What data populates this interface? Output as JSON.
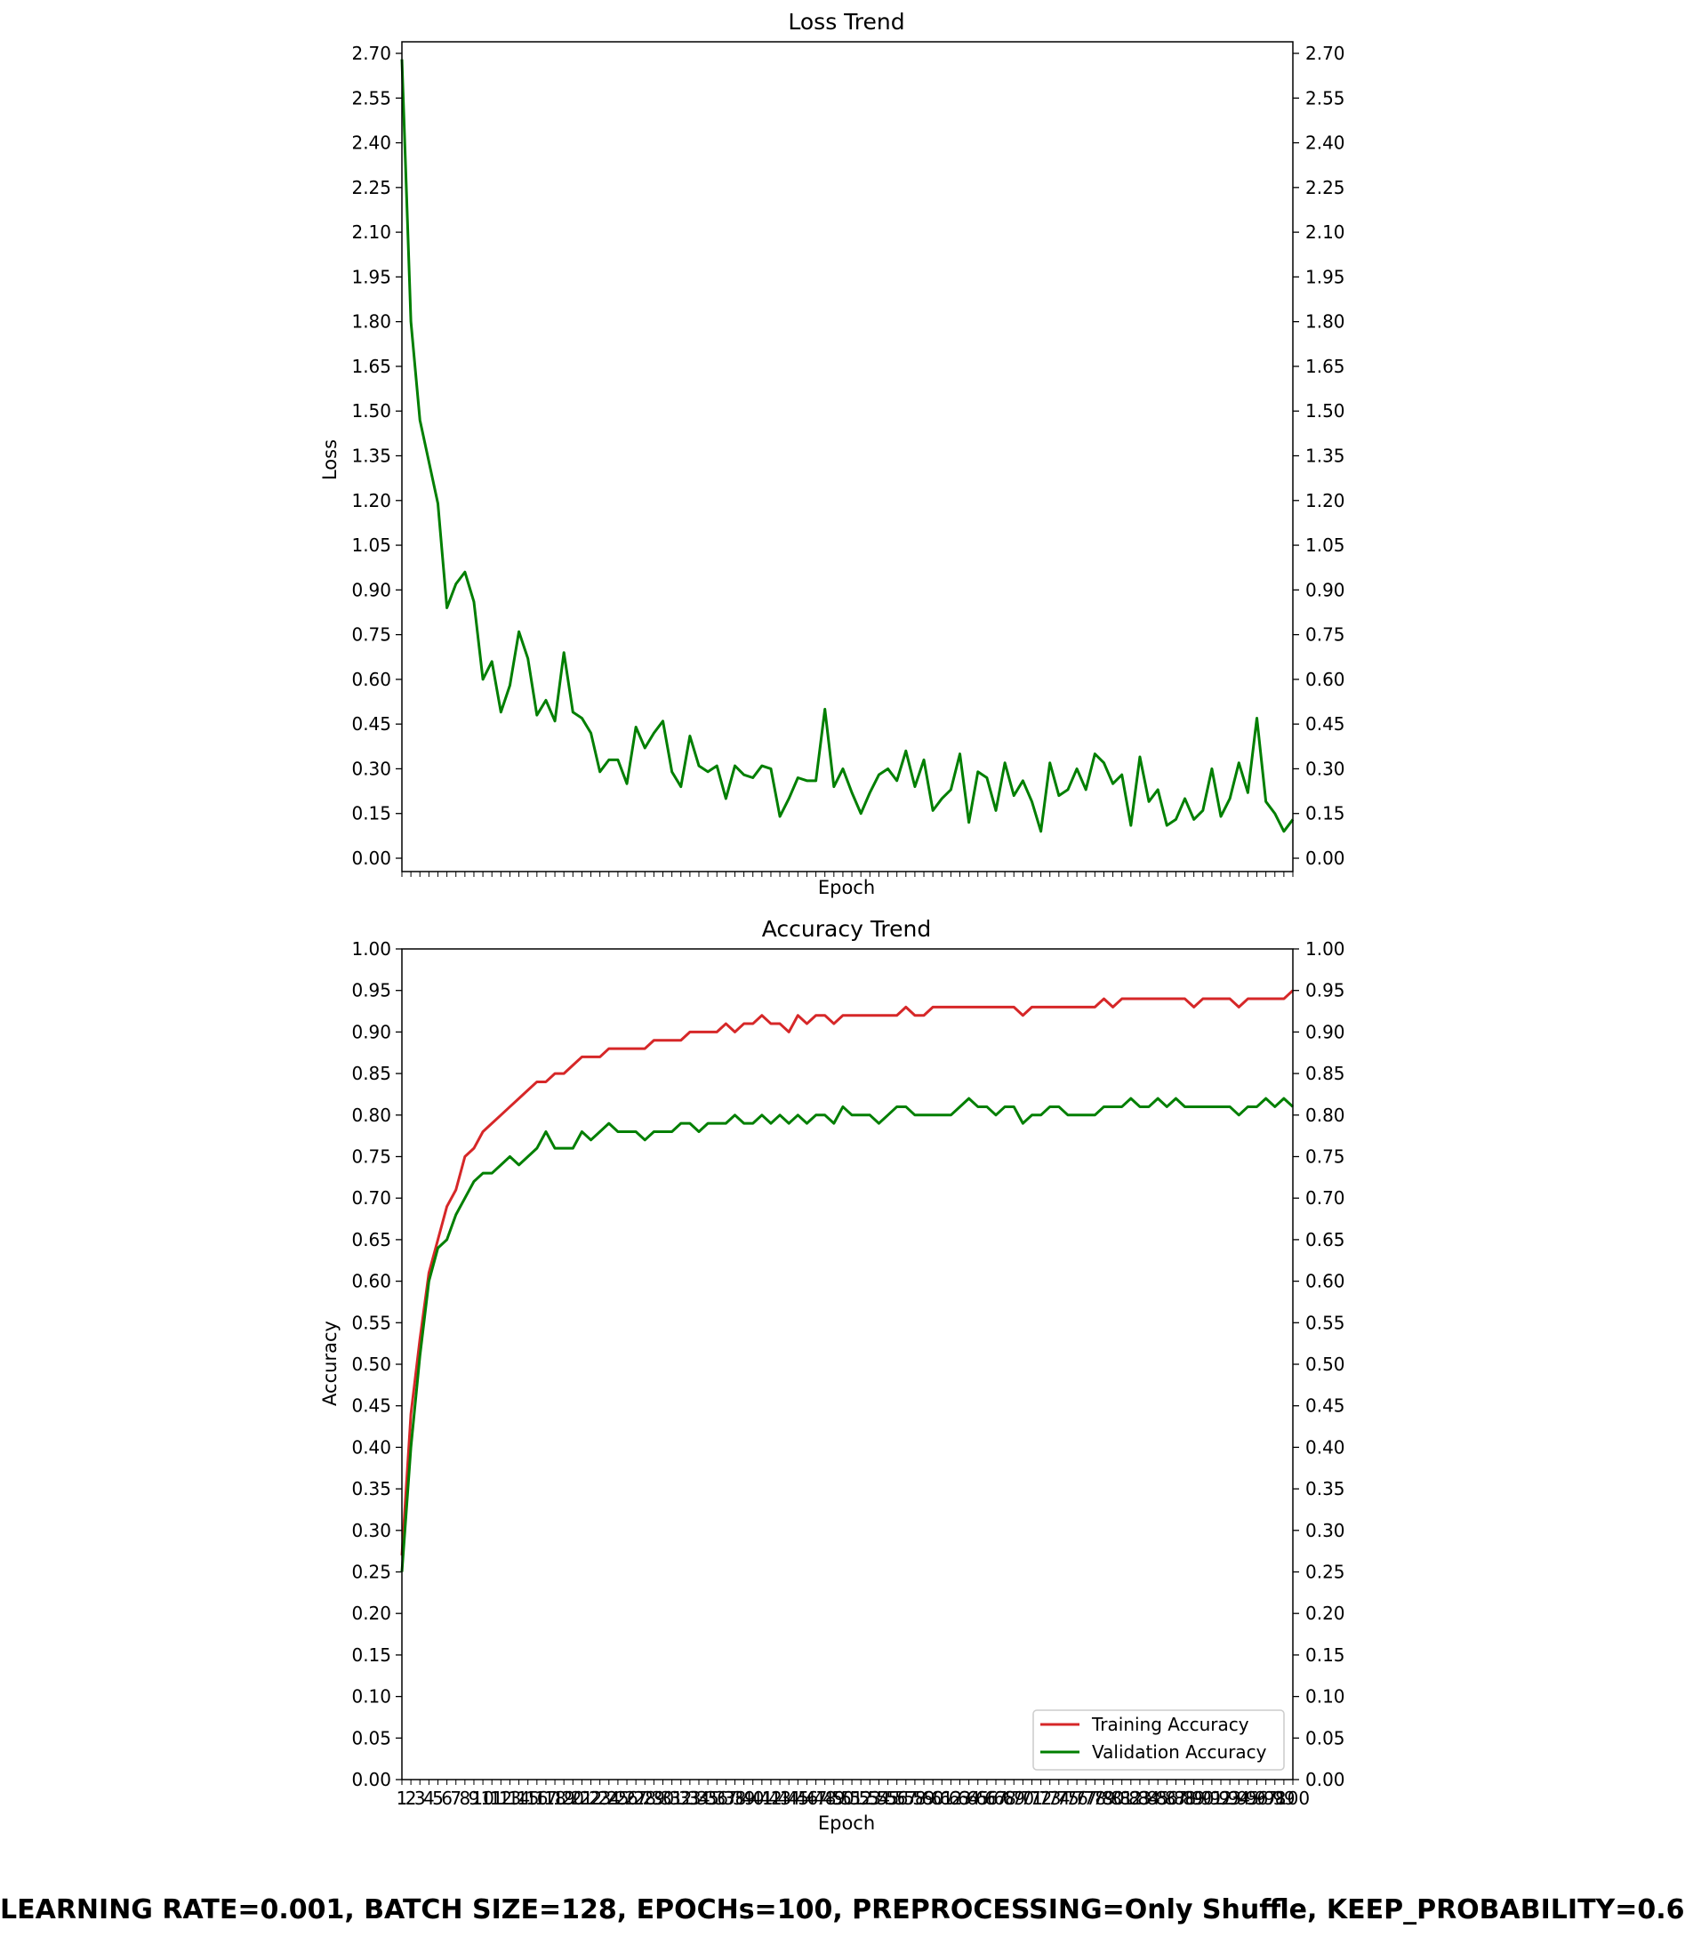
{
  "footer": "LEARNING RATE=0.001, BATCH SIZE=128, EPOCHs=100, PREPROCESSING=Only Shuffle, KEEP_PROBABILITY=0.6",
  "chart_data": [
    {
      "type": "line",
      "title": "Loss Trend",
      "xlabel": "Epoch",
      "ylabel": "Loss",
      "ylim": [
        0.0,
        2.7
      ],
      "yticks": [
        "0.00",
        "0.15",
        "0.30",
        "0.45",
        "0.60",
        "0.75",
        "0.90",
        "1.05",
        "1.20",
        "1.35",
        "1.50",
        "1.65",
        "1.80",
        "1.95",
        "2.10",
        "2.25",
        "2.40",
        "2.55",
        "2.70"
      ],
      "xlim": [
        1,
        100
      ],
      "show_xtick_labels": false,
      "grid": false,
      "series": [
        {
          "color": "#007f00",
          "values": [
            2.68,
            1.8,
            1.47,
            1.33,
            1.19,
            0.84,
            0.92,
            0.96,
            0.86,
            0.6,
            0.66,
            0.49,
            0.58,
            0.76,
            0.67,
            0.48,
            0.53,
            0.46,
            0.69,
            0.49,
            0.47,
            0.42,
            0.29,
            0.33,
            0.33,
            0.25,
            0.44,
            0.37,
            0.42,
            0.46,
            0.29,
            0.24,
            0.41,
            0.31,
            0.29,
            0.31,
            0.2,
            0.31,
            0.28,
            0.27,
            0.31,
            0.3,
            0.14,
            0.2,
            0.27,
            0.26,
            0.26,
            0.5,
            0.24,
            0.3,
            0.22,
            0.15,
            0.22,
            0.28,
            0.3,
            0.26,
            0.36,
            0.24,
            0.33,
            0.16,
            0.2,
            0.23,
            0.35,
            0.12,
            0.29,
            0.27,
            0.16,
            0.32,
            0.21,
            0.26,
            0.19,
            0.09,
            0.32,
            0.21,
            0.23,
            0.3,
            0.23,
            0.35,
            0.32,
            0.25,
            0.28,
            0.11,
            0.34,
            0.19,
            0.23,
            0.11,
            0.13,
            0.2,
            0.13,
            0.16,
            0.3,
            0.14,
            0.2,
            0.32,
            0.22,
            0.47,
            0.19,
            0.15,
            0.09,
            0.13
          ]
        }
      ]
    },
    {
      "type": "line",
      "title": "Accuracy Trend",
      "xlabel": "Epoch",
      "ylabel": "Accuracy",
      "ylim": [
        0.0,
        1.0
      ],
      "yticks": [
        "0.00",
        "0.05",
        "0.10",
        "0.15",
        "0.20",
        "0.25",
        "0.30",
        "0.35",
        "0.40",
        "0.45",
        "0.50",
        "0.55",
        "0.60",
        "0.65",
        "0.70",
        "0.75",
        "0.80",
        "0.85",
        "0.90",
        "0.95",
        "1.00"
      ],
      "xlim": [
        1,
        100
      ],
      "categories": [
        "1",
        "2",
        "3",
        "4",
        "5",
        "6",
        "7",
        "8",
        "9",
        "10",
        "11",
        "12",
        "13",
        "14",
        "15",
        "16",
        "17",
        "18",
        "19",
        "20",
        "21",
        "22",
        "23",
        "24",
        "25",
        "26",
        "27",
        "28",
        "29",
        "30",
        "31",
        "32",
        "33",
        "34",
        "35",
        "36",
        "37",
        "38",
        "39",
        "40",
        "41",
        "42",
        "43",
        "44",
        "45",
        "46",
        "47",
        "48",
        "49",
        "50",
        "51",
        "52",
        "53",
        "54",
        "55",
        "56",
        "57",
        "58",
        "59",
        "60",
        "61",
        "62",
        "63",
        "64",
        "65",
        "66",
        "67",
        "68",
        "69",
        "70",
        "71",
        "72",
        "73",
        "74",
        "75",
        "76",
        "77",
        "78",
        "79",
        "80",
        "81",
        "82",
        "83",
        "84",
        "85",
        "86",
        "87",
        "88",
        "89",
        "90",
        "91",
        "92",
        "93",
        "94",
        "95",
        "96",
        "97",
        "98",
        "99",
        "100"
      ],
      "show_xtick_labels": true,
      "grid": false,
      "legend_position": "lower-right",
      "series": [
        {
          "name": "Training Accuracy",
          "color": "#d62728",
          "values": [
            0.27,
            0.44,
            0.53,
            0.61,
            0.65,
            0.69,
            0.71,
            0.75,
            0.76,
            0.78,
            0.79,
            0.8,
            0.81,
            0.82,
            0.83,
            0.84,
            0.84,
            0.85,
            0.85,
            0.86,
            0.87,
            0.87,
            0.87,
            0.88,
            0.88,
            0.88,
            0.88,
            0.88,
            0.89,
            0.89,
            0.89,
            0.89,
            0.9,
            0.9,
            0.9,
            0.9,
            0.91,
            0.9,
            0.91,
            0.91,
            0.92,
            0.91,
            0.91,
            0.9,
            0.92,
            0.91,
            0.92,
            0.92,
            0.91,
            0.92,
            0.92,
            0.92,
            0.92,
            0.92,
            0.92,
            0.92,
            0.93,
            0.92,
            0.92,
            0.93,
            0.93,
            0.93,
            0.93,
            0.93,
            0.93,
            0.93,
            0.93,
            0.93,
            0.93,
            0.92,
            0.93,
            0.93,
            0.93,
            0.93,
            0.93,
            0.93,
            0.93,
            0.93,
            0.94,
            0.93,
            0.94,
            0.94,
            0.94,
            0.94,
            0.94,
            0.94,
            0.94,
            0.94,
            0.93,
            0.94,
            0.94,
            0.94,
            0.94,
            0.93,
            0.94,
            0.94,
            0.94,
            0.94,
            0.94,
            0.95
          ]
        },
        {
          "name": "Validation Accuracy",
          "color": "#007f00",
          "values": [
            0.25,
            0.4,
            0.51,
            0.6,
            0.64,
            0.65,
            0.68,
            0.7,
            0.72,
            0.73,
            0.73,
            0.74,
            0.75,
            0.74,
            0.75,
            0.76,
            0.78,
            0.76,
            0.76,
            0.76,
            0.78,
            0.77,
            0.78,
            0.79,
            0.78,
            0.78,
            0.78,
            0.77,
            0.78,
            0.78,
            0.78,
            0.79,
            0.79,
            0.78,
            0.79,
            0.79,
            0.79,
            0.8,
            0.79,
            0.79,
            0.8,
            0.79,
            0.8,
            0.79,
            0.8,
            0.79,
            0.8,
            0.8,
            0.79,
            0.81,
            0.8,
            0.8,
            0.8,
            0.79,
            0.8,
            0.81,
            0.81,
            0.8,
            0.8,
            0.8,
            0.8,
            0.8,
            0.81,
            0.82,
            0.81,
            0.81,
            0.8,
            0.81,
            0.81,
            0.79,
            0.8,
            0.8,
            0.81,
            0.81,
            0.8,
            0.8,
            0.8,
            0.8,
            0.81,
            0.81,
            0.81,
            0.82,
            0.81,
            0.81,
            0.82,
            0.81,
            0.82,
            0.81,
            0.81,
            0.81,
            0.81,
            0.81,
            0.81,
            0.8,
            0.81,
            0.81,
            0.82,
            0.81,
            0.82,
            0.81
          ]
        }
      ]
    }
  ]
}
